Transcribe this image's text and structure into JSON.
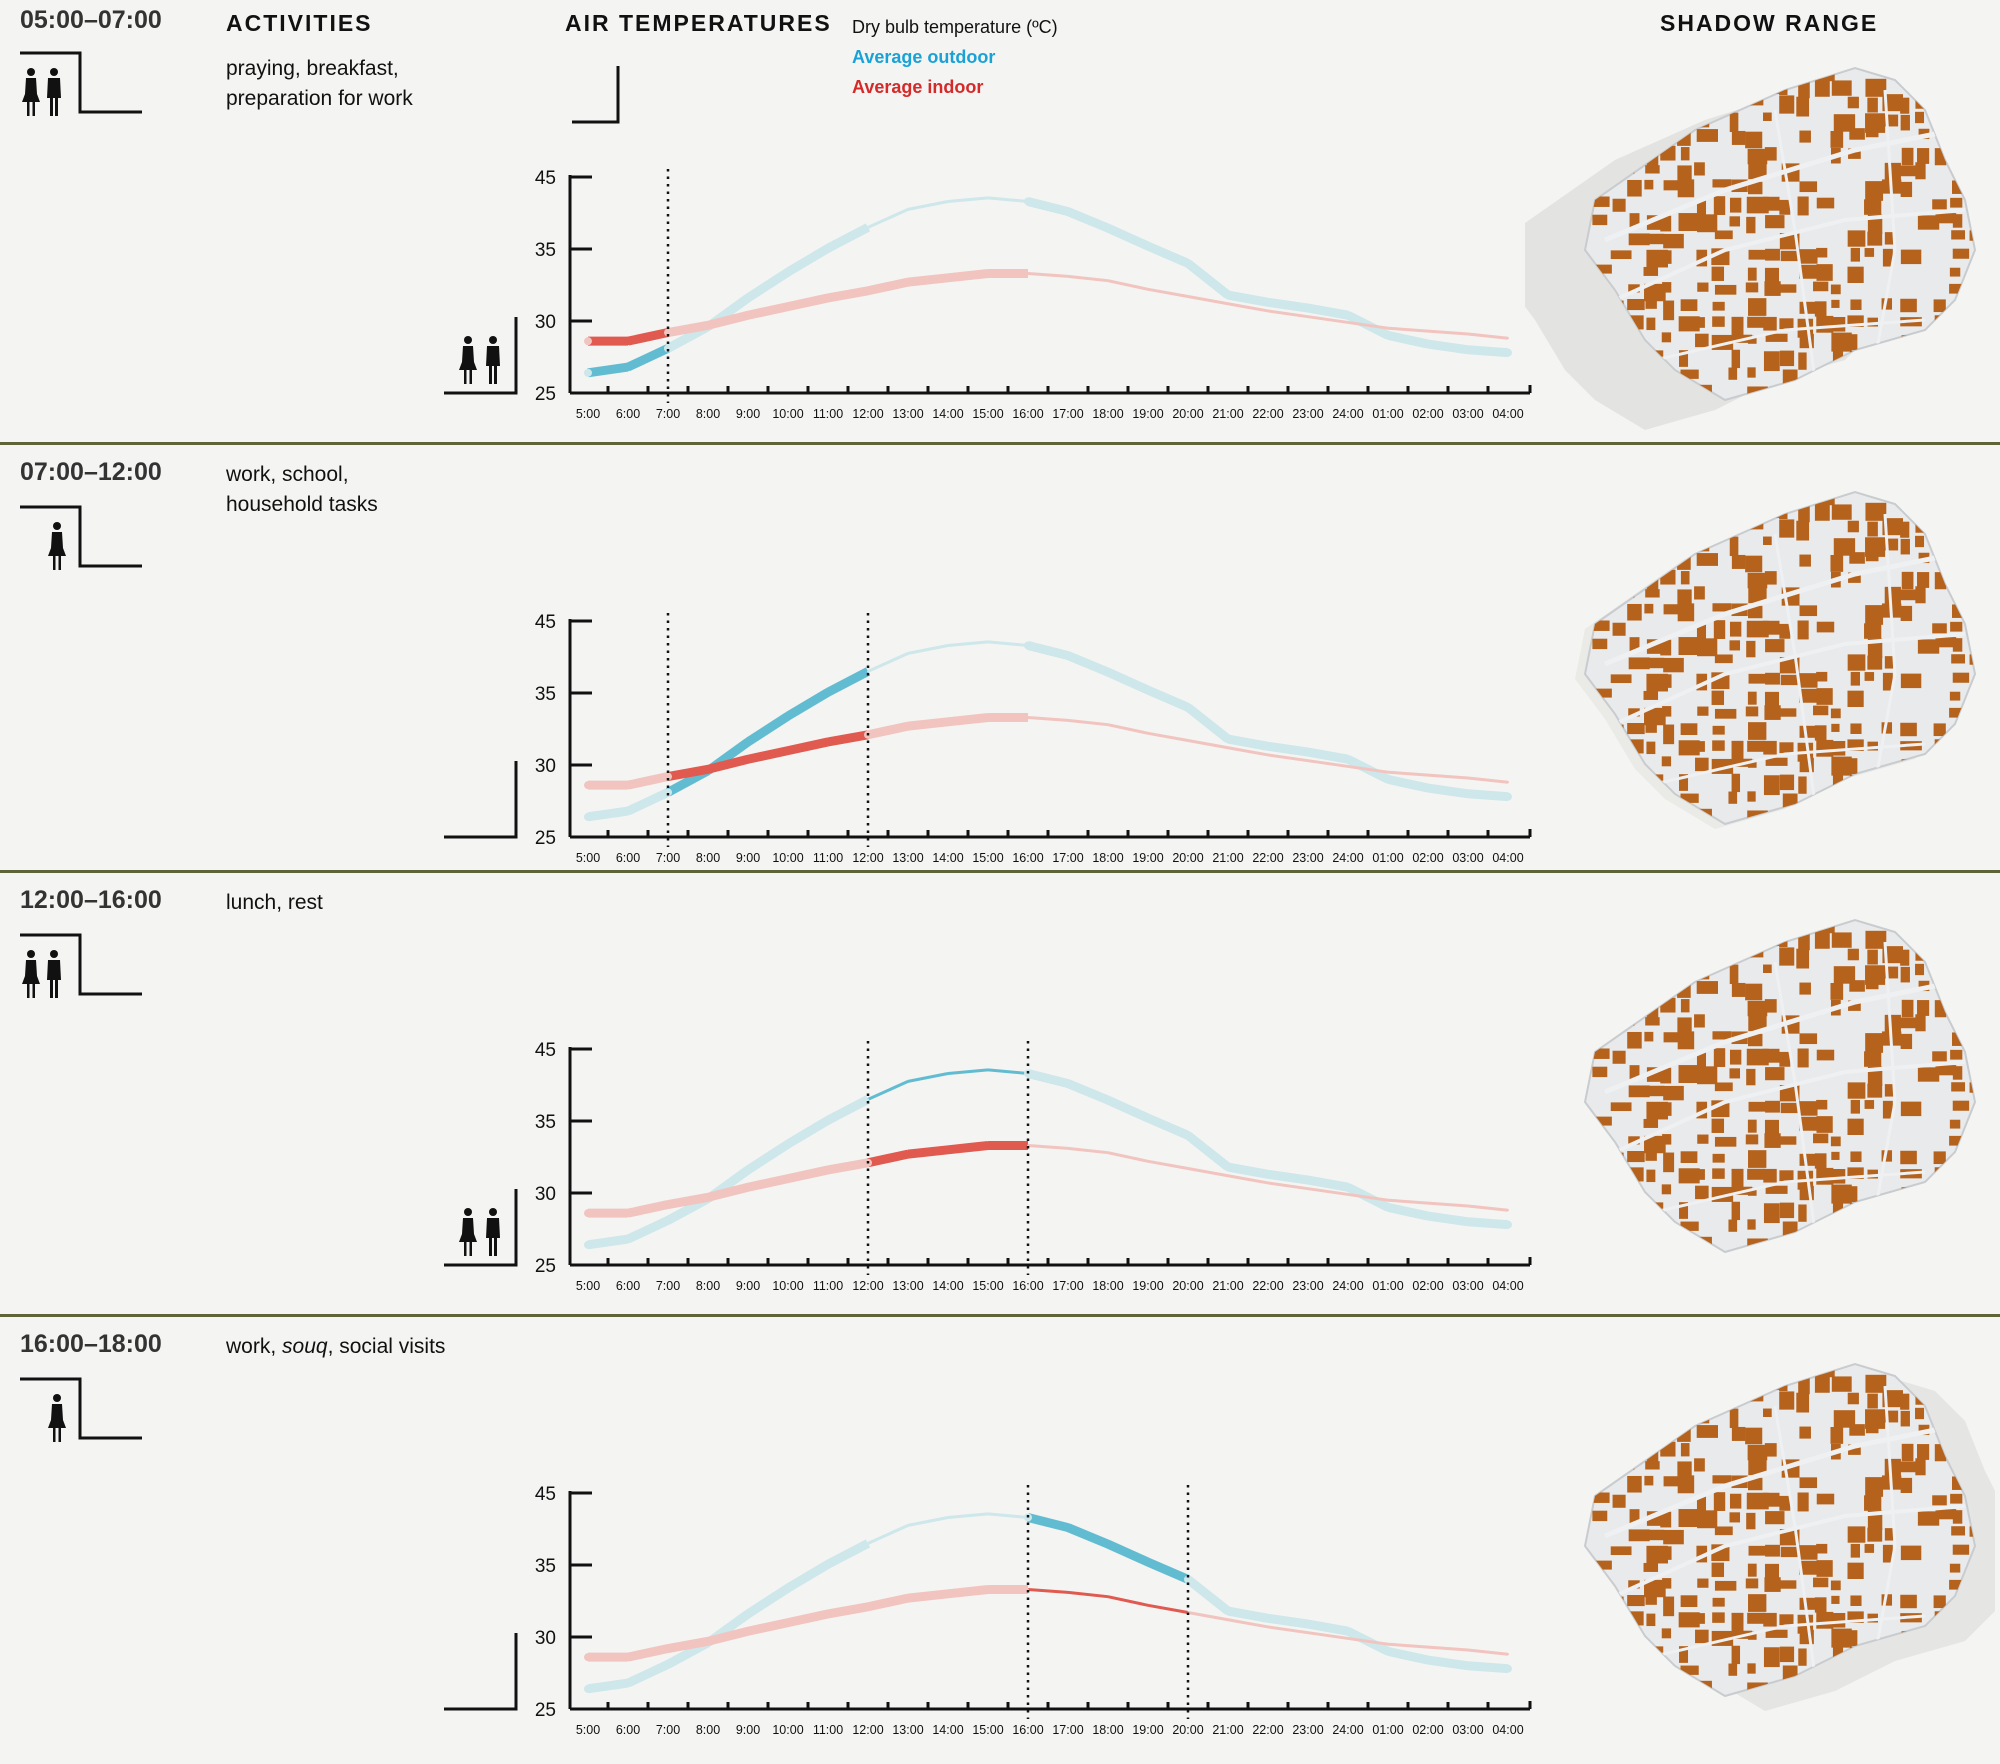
{
  "headers": {
    "activities": "ACTIVITIES",
    "air_temperatures": "AIR TEMPERATURES",
    "shadow_range": "SHADOW RANGE"
  },
  "legend": {
    "title": "Dry bulb temperature (ºC)",
    "outdoor": "Average outdoor",
    "indoor": "Average indoor"
  },
  "colors": {
    "outdoor_strong": "#62bcd1",
    "outdoor_light": "#cde7ea",
    "indoor_strong": "#e05a50",
    "indoor_light": "#f1c4bf",
    "separator": "#5f6438",
    "building": "#b5621c"
  },
  "sections": [
    {
      "time": "05:00–07:00",
      "activity_parts": [
        "praying, breakfast,",
        "preparation for work"
      ],
      "people": [
        "woman-icon",
        "man-icon"
      ],
      "highlight": [
        0,
        2
      ],
      "shadow": "long-west"
    },
    {
      "time": "07:00–12:00",
      "activity_parts": [
        "work, school,",
        "household tasks"
      ],
      "people": [
        "woman-icon"
      ],
      "highlight": [
        2,
        7
      ],
      "shadow": "short"
    },
    {
      "time": "12:00–16:00",
      "activity_parts": [
        "lunch, rest"
      ],
      "people": [
        "woman-icon",
        "man-icon"
      ],
      "highlight": [
        7,
        11
      ],
      "shadow": "minimal"
    },
    {
      "time": "16:00–18:00",
      "activity_parts": [
        "work, ",
        "souq",
        ", social visits"
      ],
      "people": [
        "woman-icon"
      ],
      "highlight": [
        11,
        15
      ],
      "shadow": "long-east"
    }
  ],
  "chart_data": {
    "type": "line",
    "title": "Dry bulb temperature (ºC)",
    "xlabel": "",
    "ylabel": "",
    "ylim": [
      25,
      45
    ],
    "y_ticks": [
      25,
      30,
      35,
      45
    ],
    "categories": [
      "5:00",
      "6:00",
      "7:00",
      "8:00",
      "9:00",
      "10:00",
      "11:00",
      "12:00",
      "13:00",
      "14:00",
      "15:00",
      "16:00",
      "17:00",
      "18:00",
      "19:00",
      "20:00",
      "21:00",
      "22:00",
      "23:00",
      "24:00",
      "01:00",
      "02:00",
      "03:00",
      "04:00"
    ],
    "series": [
      {
        "name": "Average outdoor",
        "values": [
          26.4,
          26.8,
          28.1,
          29.6,
          31.6,
          33.4,
          35.1,
          38.0,
          40.5,
          41.6,
          42.1,
          41.6,
          40.2,
          37.9,
          35.4,
          34.0,
          31.8,
          31.3,
          30.9,
          30.4,
          29.0,
          28.4,
          28.0,
          27.8
        ]
      },
      {
        "name": "Average indoor",
        "values": [
          28.6,
          28.6,
          29.2,
          29.7,
          30.4,
          31.0,
          31.6,
          32.1,
          32.7,
          33.0,
          33.3,
          33.3,
          33.1,
          32.8,
          32.2,
          31.7,
          31.2,
          30.7,
          30.3,
          29.9,
          29.5,
          29.3,
          29.1,
          28.8
        ]
      }
    ],
    "grid": false,
    "legend": "top"
  }
}
